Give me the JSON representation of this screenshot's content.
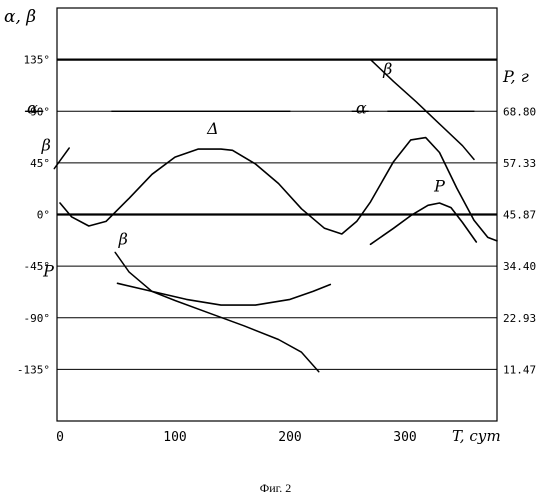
{
  "caption": "Фиг. 2",
  "chart_data": {
    "type": "line",
    "title": "",
    "left_axis_label": "α, β",
    "right_axis_label": "P, г",
    "x_axis_label": "T, сут",
    "x_ticks": [
      0,
      100,
      200,
      300
    ],
    "xlim": [
      0,
      380
    ],
    "left_ylim": [
      -180,
      180
    ],
    "left_ticks": [
      "135°",
      "90°",
      "45°",
      "0°",
      "-45°",
      "-90°",
      "-135°"
    ],
    "left_tick_values": [
      135,
      90,
      45,
      0,
      -45,
      -90,
      -135
    ],
    "right_ticks": [
      "68.80",
      "57.33",
      "45.87",
      "34.40",
      "22.93",
      "11.47"
    ],
    "right_tick_values": [
      90,
      45,
      0,
      -45,
      -90,
      -135
    ],
    "grid": "horizontal",
    "bold_lines": [
      135,
      0
    ],
    "series": [
      {
        "name": "Δ",
        "points": [
          [
            0,
            10
          ],
          [
            10,
            -2
          ],
          [
            25,
            -10
          ],
          [
            40,
            -6
          ],
          [
            60,
            14
          ],
          [
            80,
            35
          ],
          [
            100,
            50
          ],
          [
            120,
            57
          ],
          [
            140,
            57
          ],
          [
            150,
            56
          ],
          [
            170,
            44
          ],
          [
            190,
            27
          ],
          [
            210,
            5
          ],
          [
            230,
            -12
          ],
          [
            245,
            -17
          ],
          [
            258,
            -6
          ],
          [
            270,
            11
          ],
          [
            290,
            46
          ],
          [
            305,
            65
          ],
          [
            318,
            67
          ],
          [
            330,
            54
          ],
          [
            345,
            23
          ],
          [
            360,
            -5
          ],
          [
            372,
            -20
          ],
          [
            380,
            -23
          ]
        ]
      },
      {
        "name": "β",
        "points": [
          [
            -5,
            40
          ],
          [
            8,
            58
          ]
        ]
      },
      {
        "name": "β",
        "points": [
          [
            48,
            -33
          ],
          [
            60,
            -50
          ],
          [
            80,
            -67
          ],
          [
            100,
            -75
          ],
          [
            130,
            -86
          ],
          [
            160,
            -97
          ],
          [
            190,
            -109
          ],
          [
            210,
            -120
          ],
          [
            225,
            -137
          ]
        ]
      },
      {
        "name": "β",
        "points": [
          [
            270,
            135
          ],
          [
            290,
            116
          ],
          [
            310,
            98
          ],
          [
            330,
            79
          ],
          [
            350,
            60
          ],
          [
            360,
            48
          ]
        ]
      },
      {
        "name": "P",
        "points": [
          [
            50,
            -60
          ],
          [
            80,
            -67
          ],
          [
            110,
            -74
          ],
          [
            140,
            -79
          ],
          [
            170,
            -79
          ],
          [
            200,
            -74
          ],
          [
            220,
            -67
          ],
          [
            235,
            -61
          ]
        ]
      },
      {
        "name": "P",
        "points": [
          [
            270,
            -26
          ],
          [
            290,
            -12
          ],
          [
            305,
            -1
          ],
          [
            320,
            8
          ],
          [
            330,
            10
          ],
          [
            340,
            6
          ],
          [
            350,
            -7
          ],
          [
            362,
            -24
          ]
        ]
      },
      {
        "name": "α",
        "points": [
          [
            -30,
            90
          ],
          [
            -15,
            90
          ]
        ]
      },
      {
        "name": "α",
        "points": [
          [
            45,
            90
          ],
          [
            200,
            90
          ]
        ]
      },
      {
        "name": "α",
        "points": [
          [
            254,
            90
          ],
          [
            268,
            90
          ]
        ]
      },
      {
        "name": "α",
        "points": [
          [
            285,
            90
          ],
          [
            360,
            90
          ]
        ]
      }
    ],
    "curve_labels": [
      {
        "text": "Δ",
        "x": 133,
        "y": 70
      },
      {
        "text": "β",
        "x": 55,
        "y": -26
      },
      {
        "text": "β",
        "x": 285,
        "y": 122
      },
      {
        "text": "β",
        "x": -12,
        "y": 56
      },
      {
        "text": "P",
        "x": 330,
        "y": 20
      },
      {
        "text": "P",
        "x": -10,
        "y": -54
      },
      {
        "text": "α",
        "x": -24,
        "y": 88
      },
      {
        "text": "α",
        "x": 262,
        "y": 88
      }
    ]
  }
}
